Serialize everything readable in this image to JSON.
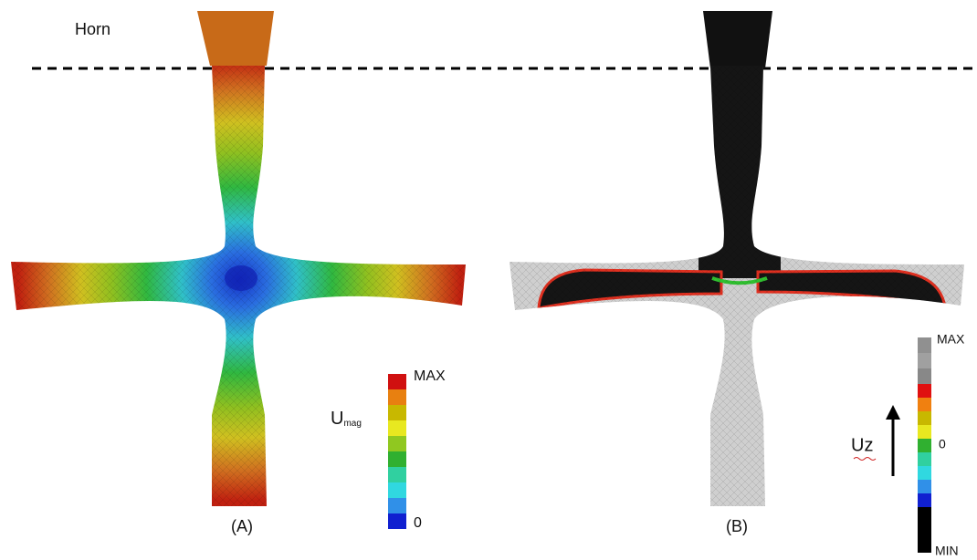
{
  "labels": {
    "horn": "Horn",
    "panel_a": "(A)",
    "panel_b": "(B)"
  },
  "legend_a": {
    "max": "MAX",
    "symbol": "U",
    "subscript": "mag",
    "min": "0"
  },
  "legend_b": {
    "max": "MAX",
    "zero": "0",
    "min": "MIN",
    "symbol": "Uz"
  }
}
